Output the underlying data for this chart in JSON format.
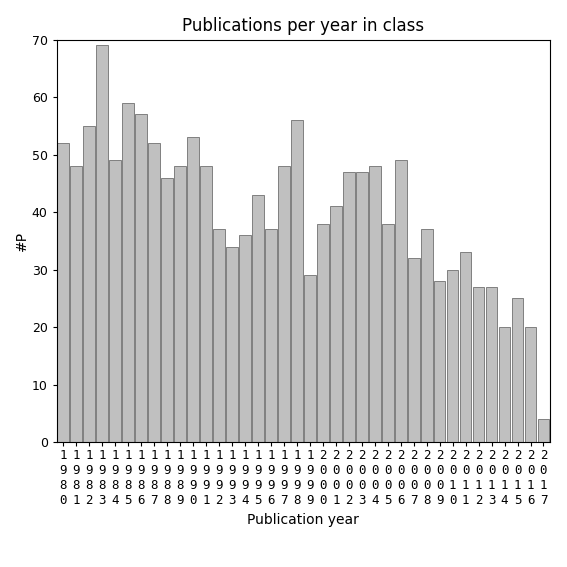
{
  "title": "Publications per year in class",
  "xlabel": "Publication year",
  "ylabel": "#P",
  "years": [
    "1980",
    "1981",
    "1982",
    "1983",
    "1984",
    "1985",
    "1986",
    "1987",
    "1988",
    "1989",
    "1990",
    "1991",
    "1992",
    "1993",
    "1994",
    "1995",
    "1996",
    "1997",
    "1998",
    "1999",
    "2000",
    "2001",
    "2002",
    "2003",
    "2004",
    "2005",
    "2006",
    "2007",
    "2008",
    "2009",
    "2010",
    "2011",
    "2012",
    "2013",
    "2014",
    "2015",
    "2016",
    "2017"
  ],
  "values": [
    52,
    48,
    55,
    69,
    49,
    59,
    57,
    52,
    46,
    48,
    53,
    48,
    37,
    34,
    36,
    43,
    37,
    48,
    56,
    29,
    38,
    41,
    47,
    47,
    48,
    38,
    49,
    32,
    37,
    28,
    30,
    33,
    27,
    27,
    20,
    25,
    20,
    4
  ],
  "bar_color": "#c0c0c0",
  "bar_edge_color": "#808080",
  "ylim": [
    0,
    70
  ],
  "yticks": [
    0,
    10,
    20,
    30,
    40,
    50,
    60,
    70
  ],
  "bg_color": "#ffffff",
  "title_fontsize": 12,
  "label_fontsize": 10,
  "tick_fontsize": 9
}
